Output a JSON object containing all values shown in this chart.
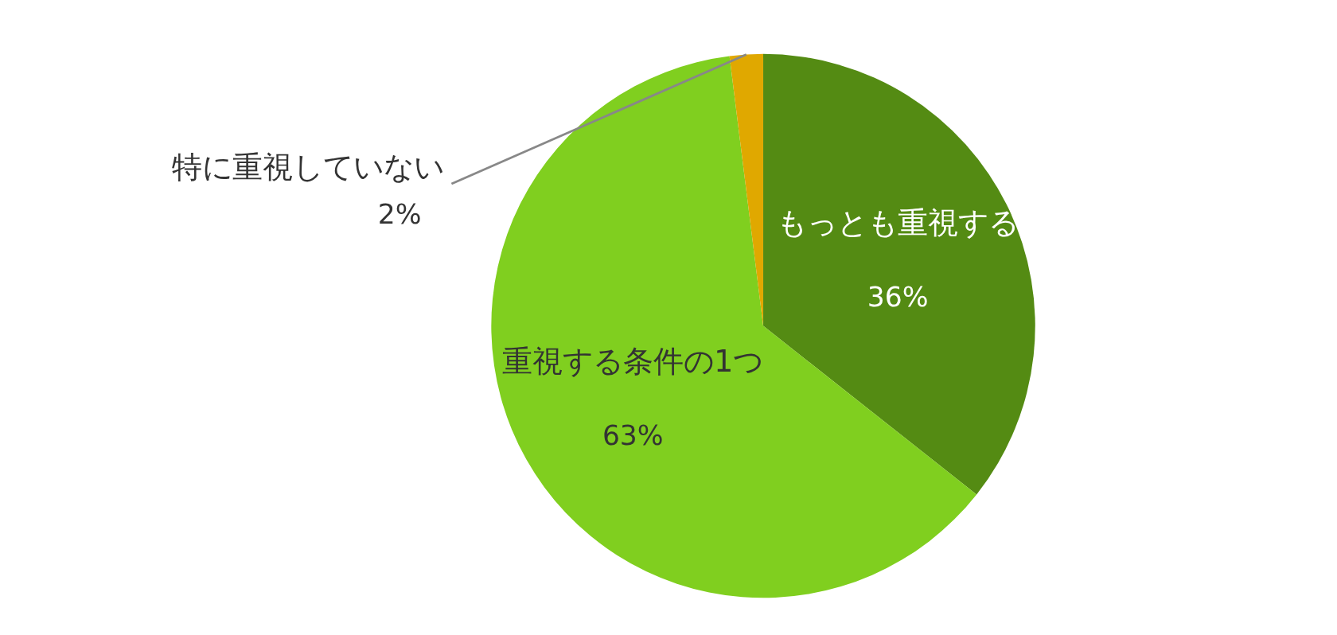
{
  "chart_data": {
    "type": "pie",
    "categories": [
      "もっとも重視する",
      "重視する条件の1つ",
      "特に重視していない"
    ],
    "values": [
      36,
      63,
      2
    ],
    "colors": [
      "#548b13",
      "#80cf1f",
      "#e0a800"
    ],
    "value_labels": [
      "36%",
      "63%",
      "2%"
    ]
  }
}
